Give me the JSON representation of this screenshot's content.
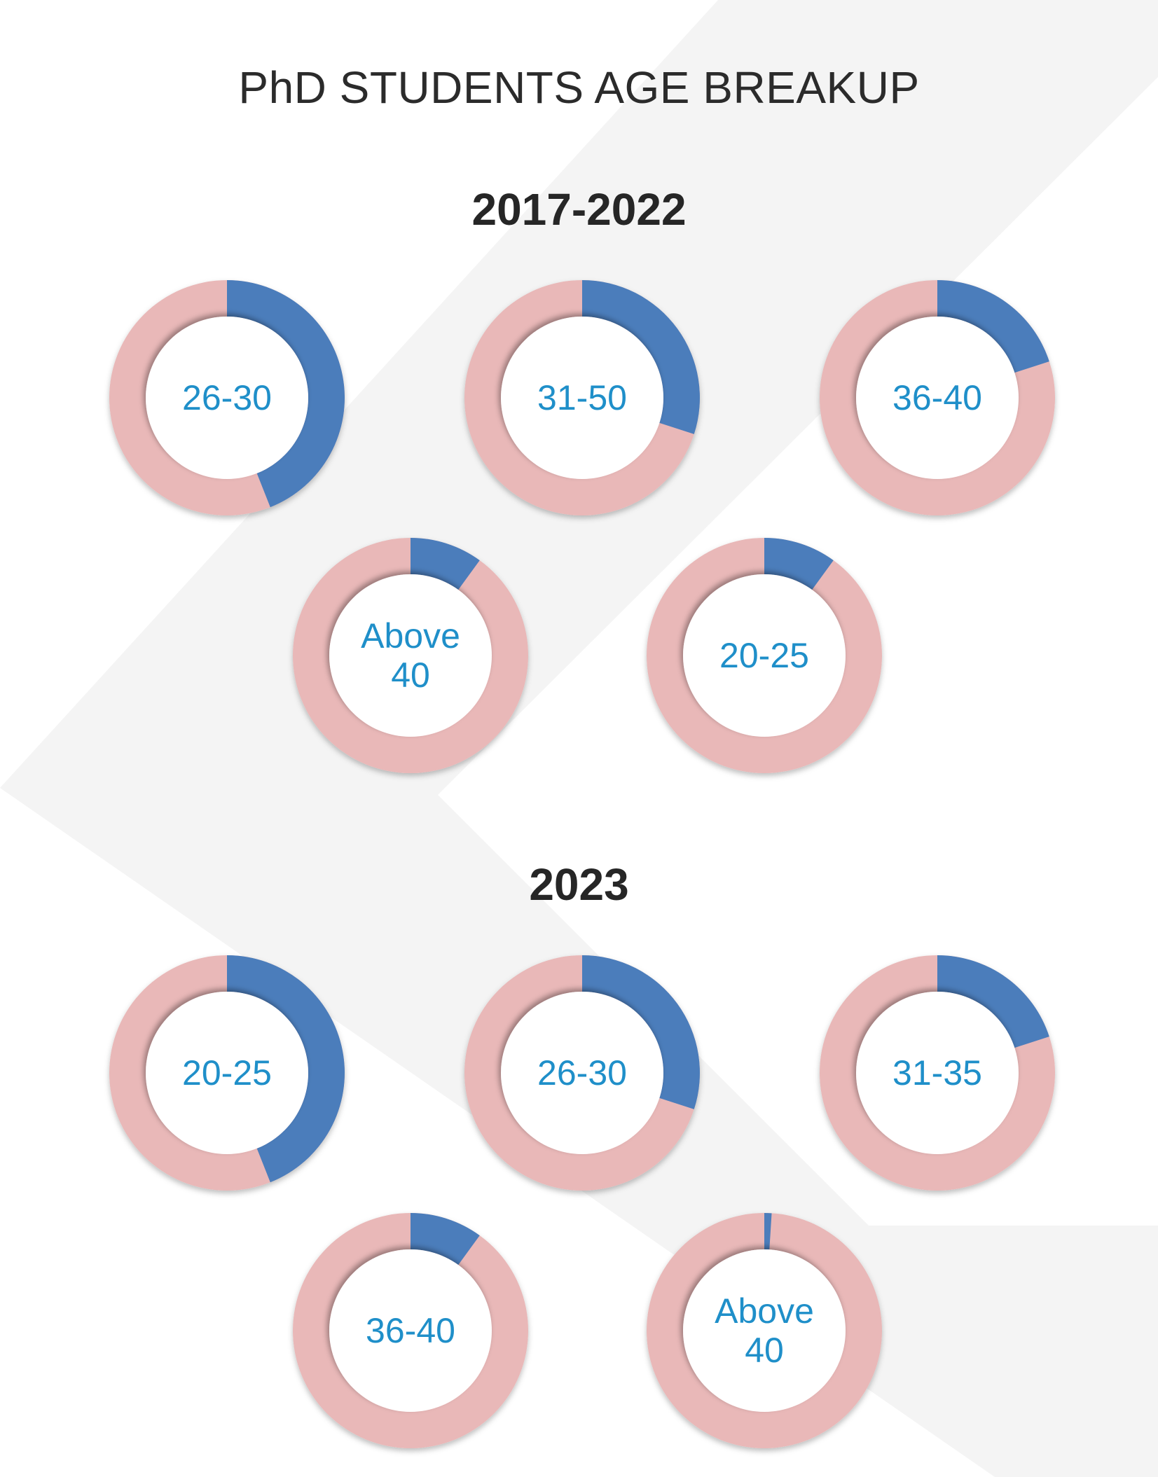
{
  "title": "PhD STUDENTS AGE BREAKUP",
  "colors": {
    "share": "#4b7dbb",
    "rest": "#e9b8b8",
    "label": "#1f8fc9",
    "background_band": "#f4f4f4"
  },
  "chart_data": [
    {
      "type": "pie",
      "title": "2017-2022",
      "items": [
        {
          "label": "26-30",
          "value": 44
        },
        {
          "label": "31-50",
          "value": 30
        },
        {
          "label": "36-40",
          "value": 20
        },
        {
          "label": "Above 40",
          "value": 10
        },
        {
          "label": "20-25",
          "value": 10
        }
      ]
    },
    {
      "type": "pie",
      "title": "2023",
      "items": [
        {
          "label": "20-25",
          "value": 44
        },
        {
          "label": "26-30",
          "value": 30
        },
        {
          "label": "31-35",
          "value": 20
        },
        {
          "label": "36-40",
          "value": 10
        },
        {
          "label": "Above 40",
          "value": 1
        }
      ]
    }
  ]
}
